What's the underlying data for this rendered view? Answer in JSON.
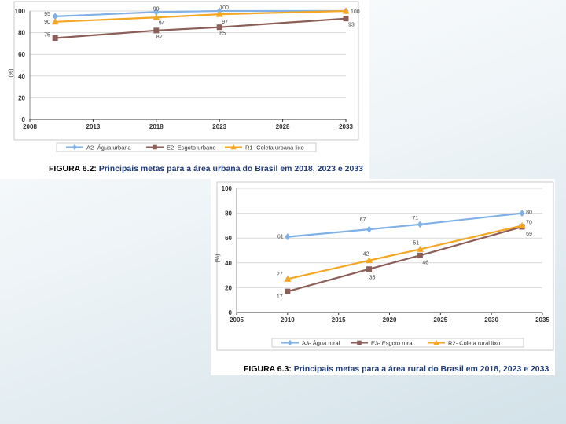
{
  "chart_data": [
    {
      "type": "line",
      "title": "",
      "ylabel": "(%)",
      "xlabel": "",
      "x_ticks": [
        2008,
        2013,
        2018,
        2023,
        2028,
        2033
      ],
      "y_ticks": [
        0,
        20,
        40,
        60,
        80,
        100
      ],
      "xlim": [
        2008,
        2033
      ],
      "ylim": [
        0,
        100
      ],
      "grid": "horizontal",
      "legend_position": "bottom",
      "caption_prefix": "FIGURA 6.2:",
      "caption_text": "Principais metas para a área urbana do Brasil em 2018, 2023 e 2033",
      "series": [
        {
          "name": "A2- Água urbana",
          "color": "#7fb0e6",
          "marker": "diamond",
          "x": [
            2010,
            2018,
            2023,
            2033
          ],
          "y": [
            95,
            99,
            100,
            100
          ],
          "labels": [
            "95",
            "99",
            "100",
            ""
          ]
        },
        {
          "name": "E2- Esgoto urbano",
          "color": "#8b5e57",
          "marker": "square",
          "x": [
            2010,
            2018,
            2023,
            2033
          ],
          "y": [
            75,
            82,
            85,
            93
          ],
          "labels": [
            "75",
            "82",
            "85",
            "93"
          ]
        },
        {
          "name": "R1- Coleta urbana lixo",
          "color": "#f5a623",
          "marker": "triangle",
          "x": [
            2010,
            2018,
            2023,
            2033
          ],
          "y": [
            90,
            94,
            97,
            100
          ],
          "labels": [
            "90",
            "94",
            "97",
            "100"
          ]
        }
      ]
    },
    {
      "type": "line",
      "title": "",
      "ylabel": "(%)",
      "xlabel": "",
      "x_ticks": [
        2005,
        2010,
        2015,
        2020,
        2025,
        2030,
        2035
      ],
      "y_ticks": [
        0,
        20,
        40,
        60,
        80,
        100
      ],
      "xlim": [
        2005,
        2035
      ],
      "ylim": [
        0,
        100
      ],
      "grid": "horizontal",
      "legend_position": "bottom",
      "caption_prefix": "FIGURA 6.3:",
      "caption_text": "Principais metas para a área rural do Brasil em 2018, 2023 e 2033",
      "series": [
        {
          "name": "A3- Água rural",
          "color": "#7fb0e6",
          "marker": "diamond",
          "x": [
            2010,
            2018,
            2023,
            2033
          ],
          "y": [
            61,
            67,
            71,
            80
          ],
          "labels": [
            "61",
            "67",
            "71",
            "80"
          ]
        },
        {
          "name": "E3- Esgoto rural",
          "color": "#8b5e57",
          "marker": "square",
          "x": [
            2010,
            2018,
            2023,
            2033
          ],
          "y": [
            17,
            35,
            46,
            69
          ],
          "labels": [
            "17",
            "35",
            "46",
            "69"
          ]
        },
        {
          "name": "R2- Coleta rural lixo",
          "color": "#f5a623",
          "marker": "triangle",
          "x": [
            2010,
            2018,
            2023,
            2033
          ],
          "y": [
            27,
            42,
            51,
            70
          ],
          "labels": [
            "27",
            "42",
            "51",
            "70"
          ]
        }
      ]
    }
  ]
}
